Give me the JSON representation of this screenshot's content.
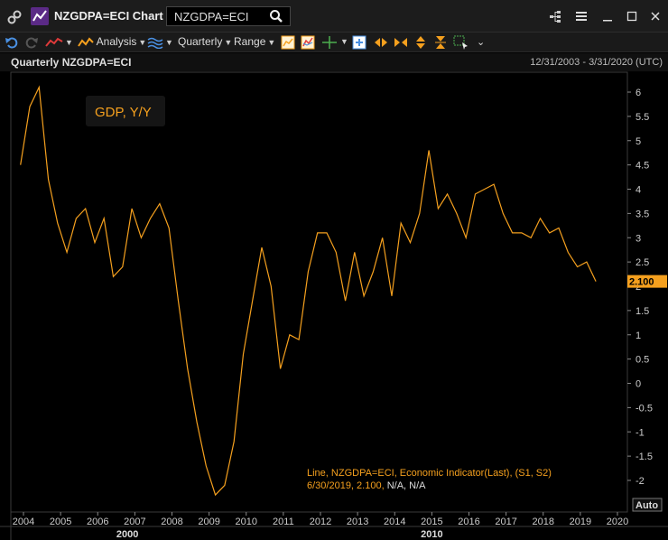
{
  "window": {
    "title": "NZGDPA=ECI Chart",
    "search_value": "NZGDPA=ECI"
  },
  "toolbar": {
    "analysis_label": "Analysis",
    "period_label": "Quarterly",
    "range_label": "Range"
  },
  "chart_header": {
    "title": "Quarterly NZGDPA=ECI",
    "date_range": "12/31/2003 - 3/31/2020 (UTC)"
  },
  "chart_data": {
    "type": "line",
    "title": "GDP, Y/Y",
    "series": [
      {
        "name": "GDP, Y/Y",
        "color": "#f5a01e",
        "x": [
          2003.92,
          2004.17,
          2004.42,
          2004.67,
          2004.92,
          2005.17,
          2005.42,
          2005.67,
          2005.92,
          2006.17,
          2006.42,
          2006.67,
          2006.92,
          2007.17,
          2007.42,
          2007.67,
          2007.92,
          2008.17,
          2008.42,
          2008.67,
          2008.92,
          2009.17,
          2009.42,
          2009.67,
          2009.92,
          2010.17,
          2010.42,
          2010.67,
          2010.92,
          2011.17,
          2011.42,
          2011.67,
          2011.92,
          2012.17,
          2012.42,
          2012.67,
          2012.92,
          2013.17,
          2013.42,
          2013.67,
          2013.92,
          2014.17,
          2014.42,
          2014.67,
          2014.92,
          2015.17,
          2015.42,
          2015.67,
          2015.92,
          2016.17,
          2016.42,
          2016.67,
          2016.92,
          2017.17,
          2017.42,
          2017.67,
          2017.92,
          2018.17,
          2018.42,
          2018.67,
          2018.92,
          2019.17,
          2019.42
        ],
        "y": [
          4.5,
          5.7,
          6.1,
          4.2,
          3.3,
          2.7,
          3.4,
          3.6,
          2.9,
          3.4,
          2.2,
          2.4,
          3.6,
          3.0,
          3.4,
          3.7,
          3.2,
          1.7,
          0.3,
          -0.8,
          -1.7,
          -2.3,
          -2.1,
          -1.2,
          0.6,
          1.7,
          2.8,
          2.0,
          0.3,
          1.0,
          0.9,
          2.3,
          3.1,
          3.1,
          2.7,
          1.7,
          2.7,
          1.8,
          2.3,
          3.0,
          1.8,
          3.3,
          2.9,
          3.5,
          4.8,
          3.6,
          3.9,
          3.5,
          3.0,
          3.9,
          4.0,
          4.1,
          3.5,
          3.1,
          3.1,
          3.0,
          3.4,
          3.1,
          3.2,
          2.7,
          2.4,
          2.5,
          2.1
        ]
      }
    ],
    "last_value_label": "2.100",
    "ylim": [
      -2.5,
      6.3
    ],
    "xlim": [
      2003.9,
      2020.3
    ],
    "y_ticks": [
      "6",
      "5.5",
      "5",
      "4.5",
      "4",
      "3.5",
      "3",
      "2.5",
      "2",
      "1.5",
      "1",
      "0.5",
      "0",
      "-0.5",
      "-1",
      "-1.5",
      "-2"
    ],
    "y_tick_values": [
      6,
      5.5,
      5,
      4.5,
      4,
      3.5,
      3,
      2.5,
      2,
      1.5,
      1,
      0.5,
      0,
      -0.5,
      -1,
      -1.5,
      -2
    ],
    "x_ticks": [
      "2004",
      "2005",
      "2006",
      "2007",
      "2008",
      "2009",
      "2010",
      "2011",
      "2012",
      "2013",
      "2014",
      "2015",
      "2016",
      "2017",
      "2018",
      "2019",
      "2020"
    ],
    "x_tick_values": [
      2004,
      2005,
      2006,
      2007,
      2008,
      2009,
      2010,
      2011,
      2012,
      2013,
      2014,
      2015,
      2016,
      2017,
      2018,
      2019,
      2020
    ],
    "decade_labels": [
      "2000",
      "2010"
    ],
    "decade_values": [
      2006.8,
      2015.0
    ],
    "legend": {
      "line1": "Line, NZGDPA=ECI, Economic Indicator(Last), (S1, S2)",
      "line2_date_value": "6/30/2019, 2.100,",
      "line2_na": "N/A, N/A"
    },
    "auto_label": "Auto",
    "grid": false
  }
}
